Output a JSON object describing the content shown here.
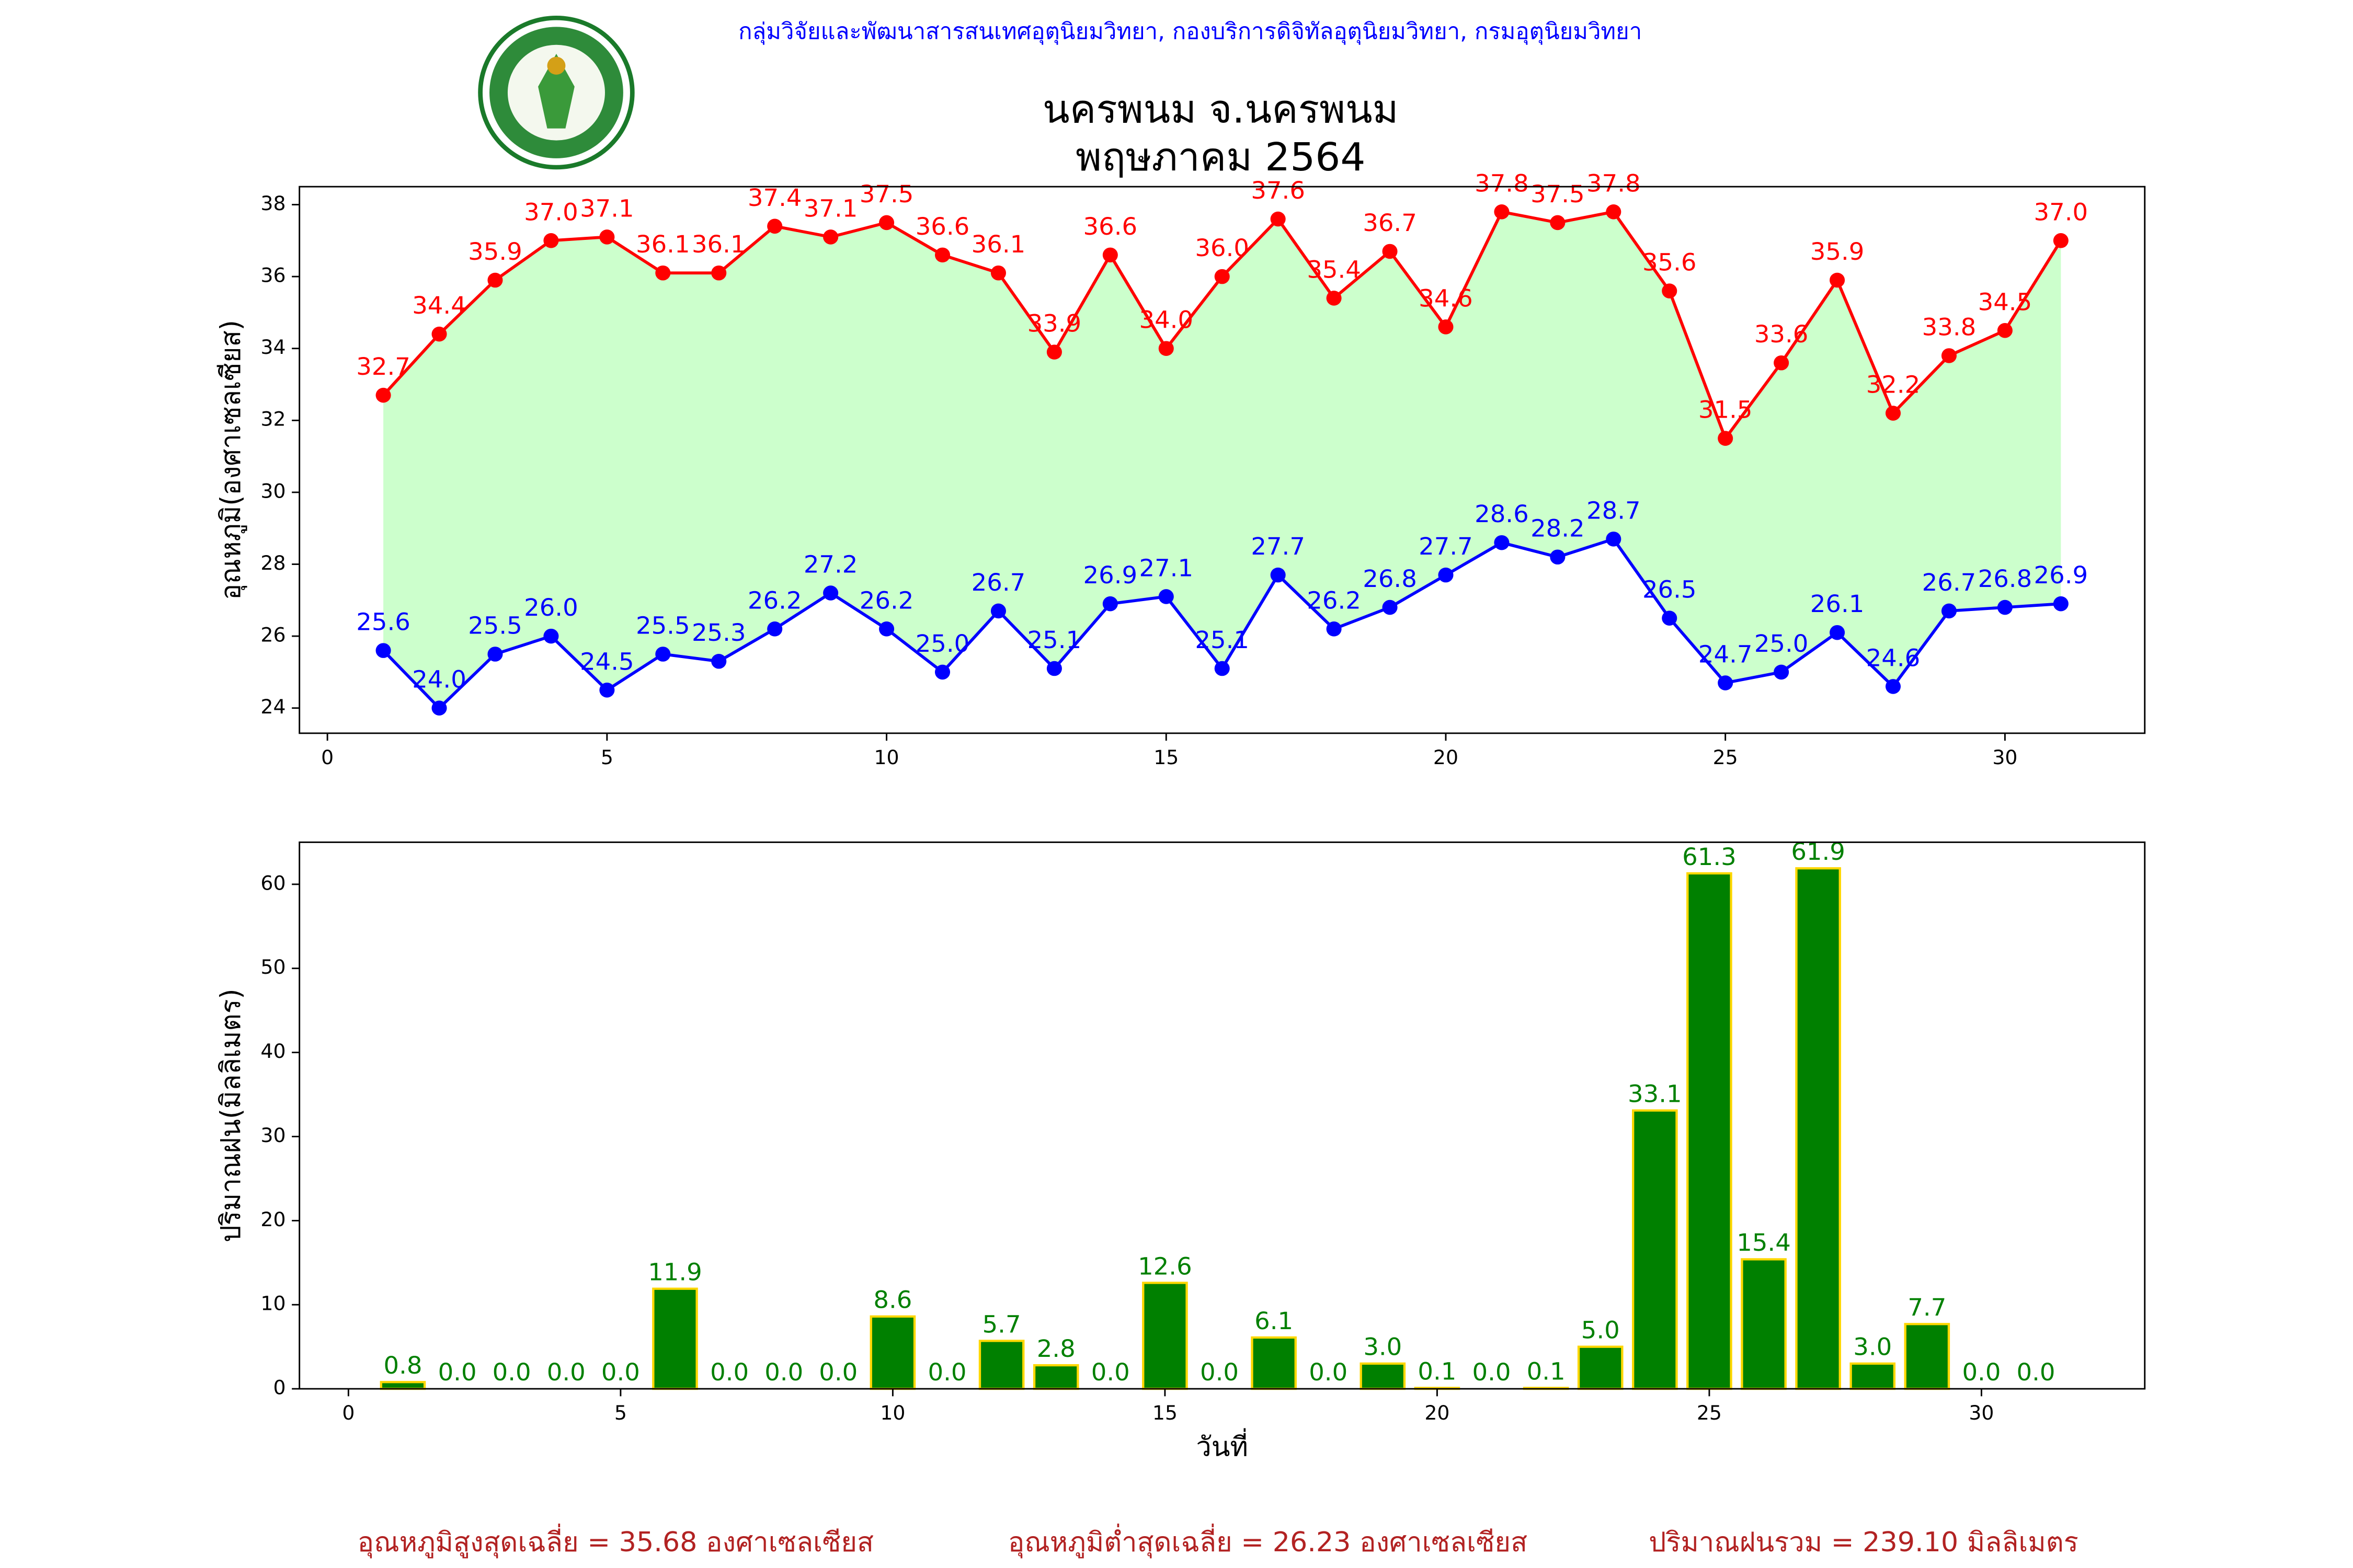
{
  "header": {
    "org": "กลุ่มวิจัยและพัฒนาสารสนเทศอุตุนิยมวิทยา, กองบริการดิจิทัลอุตุนิยมวิทยา, กรมอุตุนิยมวิทยา",
    "title": "นครพนม จ.นครพนม",
    "subtitle": "พฤษภาคม 2564"
  },
  "chart_data": [
    {
      "type": "line",
      "ylabel": "อุณหภูมิ(องศาเซลเซียส)",
      "x": [
        1,
        2,
        3,
        4,
        5,
        6,
        7,
        8,
        9,
        10,
        11,
        12,
        13,
        14,
        15,
        16,
        17,
        18,
        19,
        20,
        21,
        22,
        23,
        24,
        25,
        26,
        27,
        28,
        29,
        30,
        31
      ],
      "xlim": [
        -0.5,
        32.5
      ],
      "xticks": [
        0,
        5,
        10,
        15,
        20,
        25,
        30
      ],
      "ylim": [
        23.3,
        38.5
      ],
      "yticks": [
        24,
        26,
        28,
        30,
        32,
        34,
        36,
        38
      ],
      "fill_between_color": "#ccffcc",
      "series": [
        {
          "name": "max",
          "color": "#ff0000",
          "values": [
            32.7,
            34.4,
            35.9,
            37.0,
            37.1,
            36.1,
            36.1,
            37.4,
            37.1,
            37.5,
            36.6,
            36.1,
            33.9,
            36.6,
            34.0,
            36.0,
            37.6,
            35.4,
            36.7,
            34.6,
            37.8,
            37.5,
            37.8,
            35.6,
            31.5,
            33.6,
            35.9,
            32.2,
            33.8,
            34.5,
            37.0
          ],
          "value_labels": [
            "32.7",
            "34.4",
            "35.9",
            "37.0",
            "37.1",
            "36.1",
            "36.1",
            "37.4",
            "37.1",
            "37.5",
            "36.6",
            "36.1",
            "33.9",
            "36.6",
            "34.0",
            "36.0",
            "37.6",
            "35.4",
            "36.7",
            "34.6",
            "37.8",
            "37.5",
            "37.8",
            "35.6",
            "31.5",
            "33.6",
            "35.9",
            "32.2",
            "33.8",
            "34.5",
            "37.0"
          ]
        },
        {
          "name": "min",
          "color": "#0000ff",
          "values": [
            25.6,
            24.0,
            25.5,
            26.0,
            24.5,
            25.5,
            25.3,
            26.2,
            27.2,
            26.2,
            25.0,
            26.7,
            25.1,
            26.9,
            27.1,
            25.1,
            27.7,
            26.2,
            26.8,
            27.7,
            28.6,
            28.2,
            28.7,
            26.5,
            24.7,
            25.0,
            26.1,
            24.6,
            26.7,
            26.8,
            26.9
          ],
          "value_labels": [
            "25.6",
            "24.0",
            "25.5",
            "26.0",
            "24.5",
            "25.5",
            "25.3",
            "26.2",
            "27.2",
            "26.2",
            "25.0",
            "26.7",
            "25.1",
            "26.9",
            "27.1",
            "25.1",
            "27.7",
            "26.2",
            "26.8",
            "27.7",
            "28.6",
            "28.2",
            "28.7",
            "26.5",
            "24.7",
            "25.0",
            "26.1",
            "24.6",
            "26.7",
            "26.8",
            "26.9"
          ]
        }
      ]
    },
    {
      "type": "bar",
      "xlabel": "วันที่",
      "ylabel": "ปริมาณฝน(มิลลิเมตร)",
      "x": [
        1,
        2,
        3,
        4,
        5,
        6,
        7,
        8,
        9,
        10,
        11,
        12,
        13,
        14,
        15,
        16,
        17,
        18,
        19,
        20,
        21,
        22,
        23,
        24,
        25,
        26,
        27,
        28,
        29,
        30,
        31
      ],
      "xlim": [
        -0.9,
        33
      ],
      "xticks": [
        0,
        5,
        10,
        15,
        20,
        25,
        30
      ],
      "ylim": [
        0,
        65
      ],
      "yticks": [
        0,
        10,
        20,
        30,
        40,
        50,
        60
      ],
      "color": "#008000",
      "edge_color": "#ffd700",
      "label_color": "#008000",
      "values": [
        0.8,
        0.0,
        0.0,
        0.0,
        0.0,
        11.9,
        0.0,
        0.0,
        0.0,
        8.6,
        0.0,
        5.7,
        2.8,
        0.0,
        12.6,
        0.0,
        6.1,
        0.0,
        3.0,
        0.1,
        0.0,
        0.1,
        5.0,
        33.1,
        61.3,
        15.4,
        61.9,
        3.0,
        7.7,
        0.0,
        0.0
      ],
      "value_labels": [
        "0.8",
        "0.0",
        "0.0",
        "0.0",
        "0.0",
        "11.9",
        "0.0",
        "0.0",
        "0.0",
        "8.6",
        "0.0",
        "5.7",
        "2.8",
        "0.0",
        "12.6",
        "0.0",
        "6.1",
        "0.0",
        "3.0",
        "0.1",
        "0.0",
        "0.1",
        "5.0",
        "33.1",
        "61.3",
        "15.4",
        "61.9",
        "3.0",
        "7.7",
        "0.0",
        "0.0"
      ]
    }
  ],
  "footer": [
    "อุณหภูมิสูงสุดเฉลี่ย = 35.68 องศาเซลเซียส",
    "อุณหภูมิต่ำสุดเฉลี่ย = 26.23 องศาเซลเซียส",
    "ปริมาณฝนรวม = 239.10 มิลลิเมตร"
  ]
}
